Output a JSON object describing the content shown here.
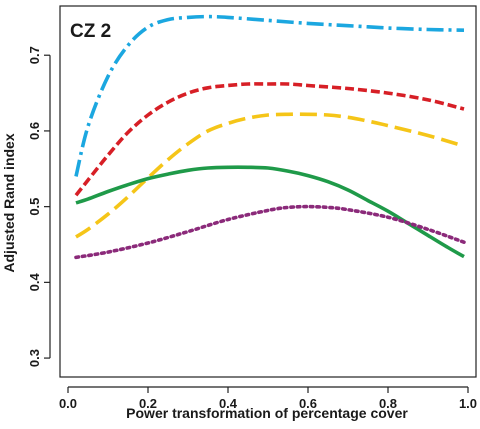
{
  "chart_data": {
    "type": "line",
    "panel_label": "CZ 2",
    "xlabel": "Power transformation of percentage cover",
    "ylabel": "Adjusted Rand index",
    "xlim": [
      -0.02,
      1.02
    ],
    "ylim": [
      0.275,
      0.765
    ],
    "x_ticks": [
      0.0,
      0.2,
      0.4,
      0.6,
      0.8,
      1.0
    ],
    "x_tick_labels": [
      "0.0",
      "0.2",
      "0.4",
      "0.6",
      "0.8",
      "1.0"
    ],
    "y_ticks": [
      0.3,
      0.4,
      0.5,
      0.6,
      0.7
    ],
    "y_tick_labels": [
      "0.3",
      "0.4",
      "0.5",
      "0.6",
      "0.7"
    ],
    "grid": false,
    "legend": "none",
    "series": [
      {
        "color": "#1ba7e0",
        "style": "dashdot",
        "x": [
          0.02,
          0.05,
          0.1,
          0.15,
          0.2,
          0.25,
          0.3,
          0.35,
          0.4,
          0.5,
          0.6,
          0.7,
          0.8,
          0.9,
          0.99
        ],
        "y": [
          0.54,
          0.606,
          0.672,
          0.713,
          0.737,
          0.747,
          0.75,
          0.751,
          0.75,
          0.746,
          0.742,
          0.739,
          0.736,
          0.734,
          0.733
        ]
      },
      {
        "color": "#d71f26",
        "style": "dashed",
        "x": [
          0.02,
          0.05,
          0.1,
          0.15,
          0.2,
          0.25,
          0.3,
          0.35,
          0.4,
          0.45,
          0.5,
          0.55,
          0.6,
          0.7,
          0.8,
          0.9,
          0.99
        ],
        "y": [
          0.515,
          0.535,
          0.568,
          0.598,
          0.621,
          0.638,
          0.65,
          0.657,
          0.66,
          0.662,
          0.662,
          0.662,
          0.66,
          0.656,
          0.65,
          0.641,
          0.629
        ]
      },
      {
        "color": "#f5c518",
        "style": "longdash",
        "x": [
          0.02,
          0.05,
          0.1,
          0.15,
          0.2,
          0.25,
          0.3,
          0.35,
          0.4,
          0.45,
          0.5,
          0.55,
          0.6,
          0.65,
          0.7,
          0.75,
          0.8,
          0.9,
          0.99
        ],
        "y": [
          0.46,
          0.47,
          0.49,
          0.513,
          0.538,
          0.562,
          0.583,
          0.6,
          0.61,
          0.617,
          0.621,
          0.622,
          0.622,
          0.621,
          0.618,
          0.613,
          0.607,
          0.594,
          0.58
        ]
      },
      {
        "color": "#1f9a49",
        "style": "solid",
        "x": [
          0.02,
          0.05,
          0.1,
          0.15,
          0.2,
          0.25,
          0.3,
          0.35,
          0.4,
          0.45,
          0.5,
          0.55,
          0.6,
          0.65,
          0.7,
          0.75,
          0.8,
          0.85,
          0.9,
          0.95,
          0.99
        ],
        "y": [
          0.505,
          0.51,
          0.52,
          0.529,
          0.537,
          0.543,
          0.548,
          0.551,
          0.552,
          0.552,
          0.551,
          0.547,
          0.541,
          0.533,
          0.522,
          0.508,
          0.494,
          0.478,
          0.462,
          0.446,
          0.434
        ]
      },
      {
        "color": "#8b2a7a",
        "style": "dotted",
        "x": [
          0.02,
          0.1,
          0.2,
          0.3,
          0.4,
          0.5,
          0.55,
          0.6,
          0.65,
          0.7,
          0.8,
          0.9,
          0.99
        ],
        "y": [
          0.433,
          0.44,
          0.452,
          0.467,
          0.483,
          0.495,
          0.499,
          0.5,
          0.499,
          0.496,
          0.486,
          0.47,
          0.453
        ]
      }
    ]
  }
}
